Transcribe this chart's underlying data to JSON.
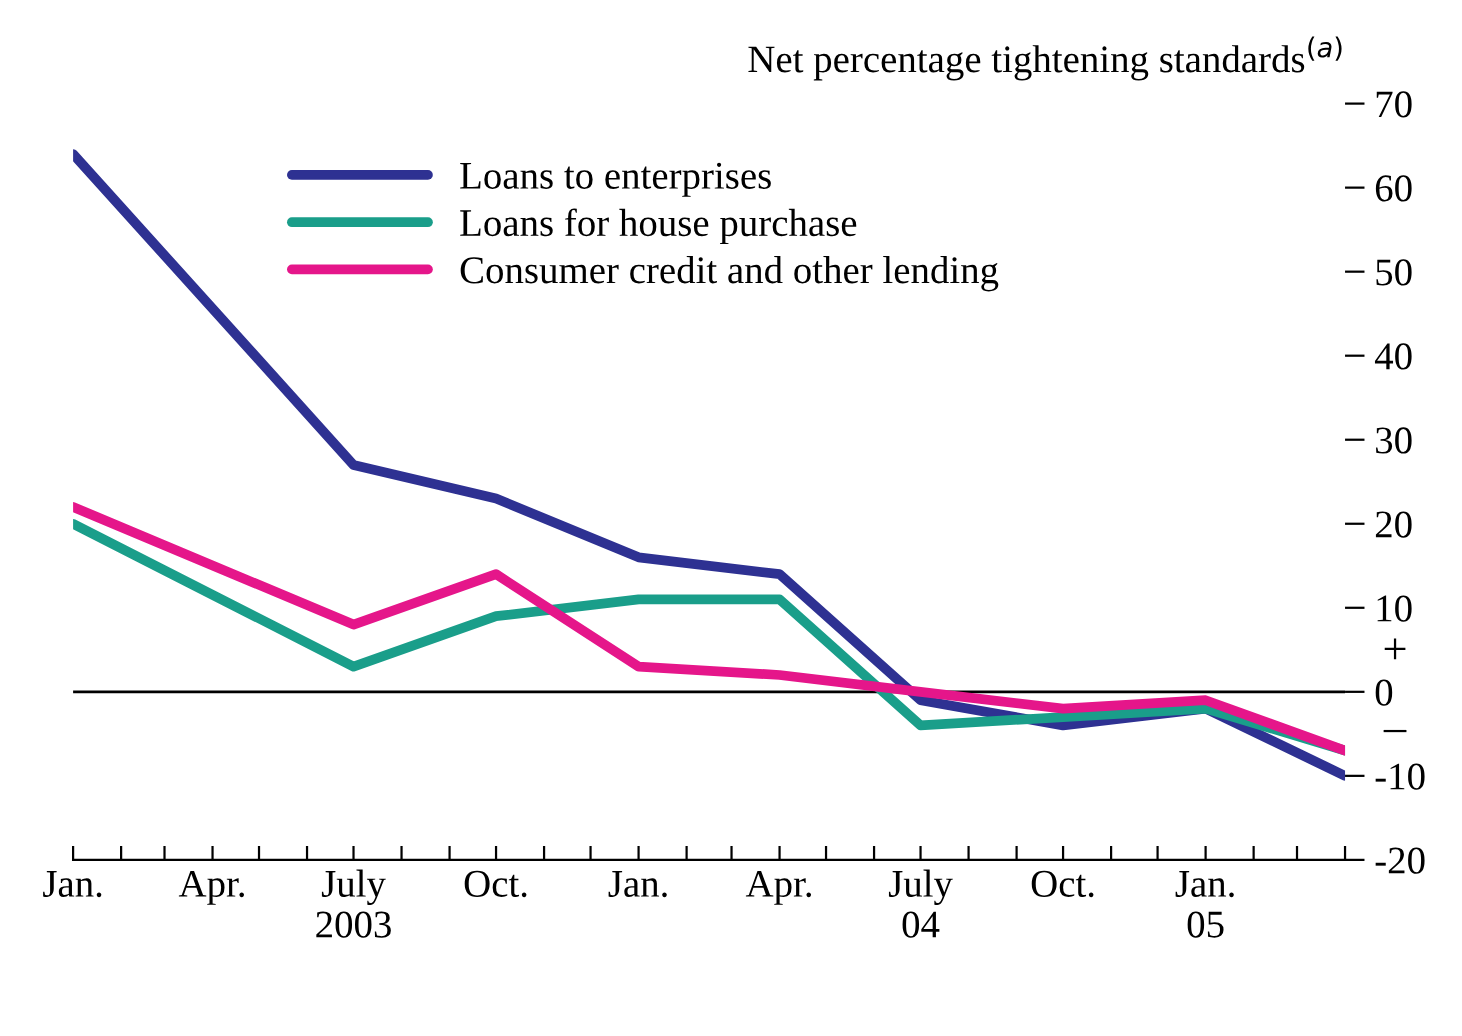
{
  "chart_data": {
    "type": "line",
    "ylabel": "Net percentage tightening standards$^{(a)}$",
    "x": [
      "2003-01",
      "2003-07",
      "2003-10",
      "2004-01",
      "2004-04",
      "2004-07",
      "2004-10",
      "2005-01",
      "2005-04"
    ],
    "series": [
      {
        "name": "Loans to enterprises",
        "color": "#2e3192",
        "values": [
          64,
          27,
          23,
          16,
          14,
          -1,
          -4,
          -2,
          -10
        ]
      },
      {
        "name": "Loans for house purchase",
        "color": "#1a9e8a",
        "values": [
          20,
          3,
          9,
          11,
          11,
          -4,
          -3,
          -2,
          -7
        ]
      },
      {
        "name": "Consumer credit and other lending",
        "color": "#e5168a",
        "values": [
          22,
          8,
          14,
          3,
          2,
          0,
          -2,
          -1,
          -7
        ]
      }
    ],
    "xlim": [
      "2003-01",
      "2005-04"
    ],
    "xticks": [
      {
        "value": "2003-01",
        "label": "Jan."
      },
      {
        "value": "2003-02",
        "label": null
      },
      {
        "value": "2003-03",
        "label": null
      },
      {
        "value": "2003-04",
        "label": "Apr."
      },
      {
        "value": "2003-05",
        "label": null
      },
      {
        "value": "2003-06",
        "label": null
      },
      {
        "value": "2003-07",
        "label": "July\n2003"
      },
      {
        "value": "2003-08",
        "label": null
      },
      {
        "value": "2003-09",
        "label": null
      },
      {
        "value": "2003-10",
        "label": "Oct."
      },
      {
        "value": "2003-11",
        "label": null
      },
      {
        "value": "2003-12",
        "label": null
      },
      {
        "value": "2004-01",
        "label": "Jan."
      },
      {
        "value": "2004-02",
        "label": null
      },
      {
        "value": "2004-03",
        "label": null
      },
      {
        "value": "2004-04",
        "label": "Apr."
      },
      {
        "value": "2004-05",
        "label": null
      },
      {
        "value": "2004-06",
        "label": null
      },
      {
        "value": "2004-07",
        "label": "July\n04"
      },
      {
        "value": "2004-08",
        "label": null
      },
      {
        "value": "2004-09",
        "label": null
      },
      {
        "value": "2004-10",
        "label": "Oct."
      },
      {
        "value": "2004-11",
        "label": null
      },
      {
        "value": "2004-12",
        "label": null
      },
      {
        "value": "2005-01",
        "label": "Jan.\n05"
      },
      {
        "value": "2005-02",
        "label": null
      },
      {
        "value": "2005-03",
        "label": null
      },
      {
        "value": "2005-04",
        "label": null
      }
    ],
    "ylim": [
      -20,
      70
    ],
    "yticks": [
      -20,
      -10,
      0,
      10,
      20,
      30,
      40,
      50,
      60,
      70
    ],
    "ref_lines": [
      {
        "axis": "y",
        "value": 0,
        "color": "#000000"
      }
    ],
    "annotations": [
      "+",
      "–"
    ],
    "legend": "top",
    "grid": false,
    "marker": "none",
    "line_style": "solid"
  }
}
